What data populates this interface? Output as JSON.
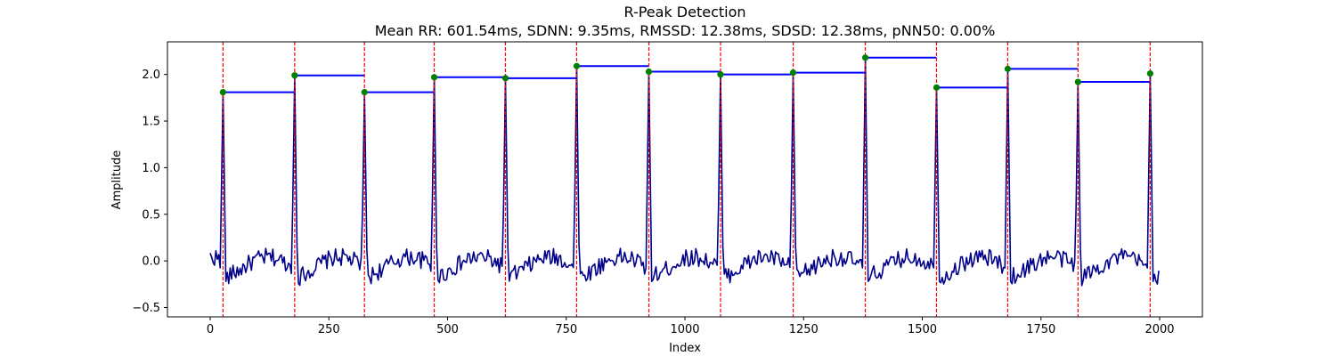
{
  "chart_data": {
    "type": "line",
    "title": "R-Peak Detection",
    "subtitle": "Mean RR: 601.54ms, SDNN: 9.35ms, RMSSD: 12.38ms, SDSD: 12.38ms, pNN50: 0.00%",
    "xlabel": "Index",
    "ylabel": "Amplitude",
    "xlim": [
      -90,
      2090
    ],
    "ylim": [
      -0.6,
      2.35
    ],
    "xticks": [
      0,
      250,
      500,
      750,
      1000,
      1250,
      1500,
      1750,
      2000
    ],
    "yticks": [
      -0.5,
      0.0,
      0.5,
      1.0,
      1.5,
      2.0
    ],
    "xtick_labels": [
      "0",
      "250",
      "500",
      "750",
      "1000",
      "1250",
      "1500",
      "1750",
      "2000"
    ],
    "ytick_labels": [
      "−0.5",
      "0.0",
      "0.5",
      "1.0",
      "1.5",
      "2.0"
    ],
    "grid": false,
    "signal": {
      "x_start": 0,
      "x_end": 2000,
      "baseline_range": [
        -0.42,
        0.27
      ],
      "color": "#00008b"
    },
    "peaks": [
      {
        "x": 27,
        "y": 1.81
      },
      {
        "x": 178,
        "y": 1.99
      },
      {
        "x": 325,
        "y": 1.81
      },
      {
        "x": 472,
        "y": 1.97
      },
      {
        "x": 622,
        "y": 1.96
      },
      {
        "x": 772,
        "y": 2.09
      },
      {
        "x": 924,
        "y": 2.03
      },
      {
        "x": 1075,
        "y": 2.0
      },
      {
        "x": 1228,
        "y": 2.02
      },
      {
        "x": 1380,
        "y": 2.18
      },
      {
        "x": 1530,
        "y": 1.86
      },
      {
        "x": 1680,
        "y": 2.06
      },
      {
        "x": 1828,
        "y": 1.92
      },
      {
        "x": 1980,
        "y": 2.01
      }
    ],
    "peak_marker_color": "#008000",
    "peak_line_color": "#ff0000",
    "rr_line_color": "#0000ff"
  }
}
